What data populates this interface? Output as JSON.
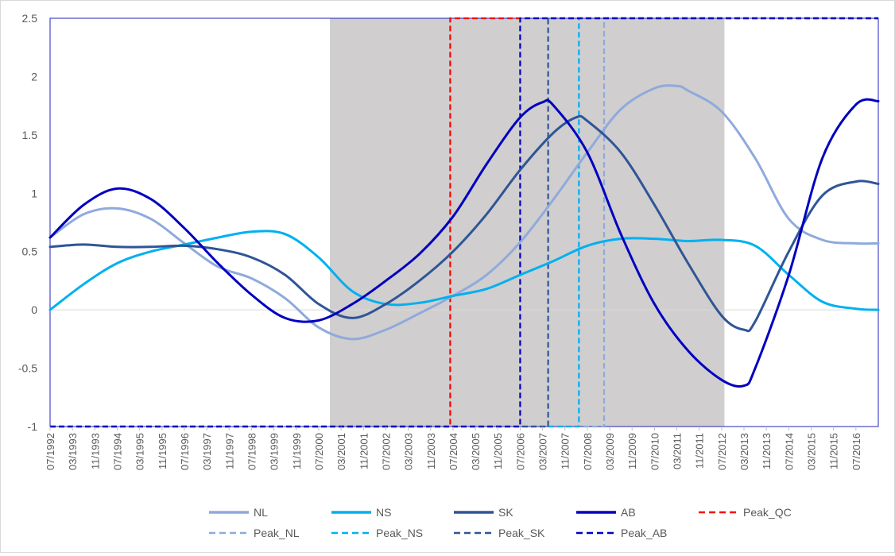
{
  "chart_data": {
    "type": "line",
    "title": "",
    "xlabel": "",
    "ylabel": "",
    "ylim": [
      -1,
      2.5
    ],
    "yticks": [
      -1,
      -0.5,
      0,
      0.5,
      1,
      1.5,
      2,
      2.5
    ],
    "ytick_labels": [
      "-1",
      "-0.5",
      "0",
      "0.5",
      "1",
      "1.5",
      "2",
      "2.5"
    ],
    "xlim": [
      "07/1992",
      "03/2017"
    ],
    "xtick_labels": [
      "07/1992",
      "03/1993",
      "11/1993",
      "07/1994",
      "03/1995",
      "11/1995",
      "07/1996",
      "03/1997",
      "11/1997",
      "07/1998",
      "03/1999",
      "11/1999",
      "07/2000",
      "03/2001",
      "11/2001",
      "07/2002",
      "03/2003",
      "11/2003",
      "07/2004",
      "03/2005",
      "11/2005",
      "07/2006",
      "03/2007",
      "11/2007",
      "07/2008",
      "03/2009",
      "11/2009",
      "07/2010",
      "03/2011",
      "11/2011",
      "07/2012",
      "03/2013",
      "11/2013",
      "07/2014",
      "03/2015",
      "11/2015",
      "07/2016"
    ],
    "shaded_region": {
      "start": "11/2000",
      "end": "08/2012",
      "color": "#d0cece"
    },
    "grid": false,
    "legend_position": "bottom",
    "series": [
      {
        "name": "NL",
        "color": "#8faadc",
        "style": "solid",
        "points": [
          [
            "07/1992",
            0.62
          ],
          [
            "07/1993",
            0.82
          ],
          [
            "07/1994",
            0.87
          ],
          [
            "07/1995",
            0.78
          ],
          [
            "07/1996",
            0.57
          ],
          [
            "07/1997",
            0.37
          ],
          [
            "07/1998",
            0.27
          ],
          [
            "07/1999",
            0.1
          ],
          [
            "07/2000",
            -0.15
          ],
          [
            "07/2001",
            -0.25
          ],
          [
            "07/2002",
            -0.17
          ],
          [
            "07/2003",
            -0.03
          ],
          [
            "07/2004",
            0.12
          ],
          [
            "07/2005",
            0.3
          ],
          [
            "07/2006",
            0.58
          ],
          [
            "07/2007",
            0.95
          ],
          [
            "07/2008",
            1.35
          ],
          [
            "07/2009",
            1.72
          ],
          [
            "07/2010",
            1.9
          ],
          [
            "03/2011",
            1.92
          ],
          [
            "07/2011",
            1.88
          ],
          [
            "07/2012",
            1.7
          ],
          [
            "07/2013",
            1.3
          ],
          [
            "07/2014",
            0.78
          ],
          [
            "07/2015",
            0.6
          ],
          [
            "07/2016",
            0.57
          ],
          [
            "03/2017",
            0.57
          ]
        ]
      },
      {
        "name": "NS",
        "color": "#00b0f0",
        "style": "solid",
        "points": [
          [
            "07/1992",
            0.0
          ],
          [
            "07/1993",
            0.22
          ],
          [
            "07/1994",
            0.4
          ],
          [
            "07/1995",
            0.5
          ],
          [
            "07/1996",
            0.56
          ],
          [
            "07/1997",
            0.62
          ],
          [
            "07/1998",
            0.67
          ],
          [
            "07/1999",
            0.65
          ],
          [
            "07/2000",
            0.45
          ],
          [
            "07/2001",
            0.16
          ],
          [
            "07/2002",
            0.05
          ],
          [
            "07/2003",
            0.06
          ],
          [
            "07/2004",
            0.12
          ],
          [
            "07/2005",
            0.18
          ],
          [
            "07/2006",
            0.3
          ],
          [
            "07/2007",
            0.42
          ],
          [
            "07/2008",
            0.55
          ],
          [
            "07/2009",
            0.61
          ],
          [
            "07/2010",
            0.61
          ],
          [
            "07/2011",
            0.59
          ],
          [
            "07/2012",
            0.6
          ],
          [
            "07/2013",
            0.55
          ],
          [
            "07/2014",
            0.3
          ],
          [
            "07/2015",
            0.07
          ],
          [
            "07/2016",
            0.01
          ],
          [
            "03/2017",
            0.0
          ]
        ]
      },
      {
        "name": "SK",
        "color": "#2f5597",
        "style": "solid",
        "points": [
          [
            "07/1992",
            0.54
          ],
          [
            "07/1993",
            0.56
          ],
          [
            "07/1994",
            0.54
          ],
          [
            "07/1995",
            0.54
          ],
          [
            "07/1996",
            0.55
          ],
          [
            "07/1997",
            0.52
          ],
          [
            "07/1998",
            0.45
          ],
          [
            "07/1999",
            0.3
          ],
          [
            "07/2000",
            0.05
          ],
          [
            "07/2001",
            -0.07
          ],
          [
            "07/2002",
            0.05
          ],
          [
            "07/2003",
            0.25
          ],
          [
            "07/2004",
            0.5
          ],
          [
            "07/2005",
            0.82
          ],
          [
            "07/2006",
            1.2
          ],
          [
            "07/2007",
            1.52
          ],
          [
            "03/2008",
            1.65
          ],
          [
            "07/2008",
            1.62
          ],
          [
            "07/2009",
            1.35
          ],
          [
            "07/2010",
            0.9
          ],
          [
            "07/2011",
            0.4
          ],
          [
            "07/2012",
            -0.05
          ],
          [
            "03/2013",
            -0.17
          ],
          [
            "07/2013",
            -0.1
          ],
          [
            "07/2014",
            0.5
          ],
          [
            "07/2015",
            0.98
          ],
          [
            "07/2016",
            1.1
          ],
          [
            "03/2017",
            1.08
          ]
        ]
      },
      {
        "name": "AB",
        "color": "#0000c0",
        "style": "solid",
        "points": [
          [
            "07/1992",
            0.62
          ],
          [
            "07/1993",
            0.9
          ],
          [
            "07/1994",
            1.04
          ],
          [
            "07/1995",
            0.95
          ],
          [
            "07/1996",
            0.7
          ],
          [
            "07/1997",
            0.4
          ],
          [
            "07/1998",
            0.13
          ],
          [
            "07/1999",
            -0.07
          ],
          [
            "07/2000",
            -0.09
          ],
          [
            "07/2001",
            0.05
          ],
          [
            "07/2002",
            0.25
          ],
          [
            "07/2003",
            0.48
          ],
          [
            "07/2004",
            0.8
          ],
          [
            "07/2005",
            1.25
          ],
          [
            "07/2006",
            1.65
          ],
          [
            "03/2007",
            1.78
          ],
          [
            "07/2007",
            1.75
          ],
          [
            "07/2008",
            1.35
          ],
          [
            "07/2009",
            0.65
          ],
          [
            "07/2010",
            0.05
          ],
          [
            "07/2011",
            -0.35
          ],
          [
            "07/2012",
            -0.6
          ],
          [
            "03/2013",
            -0.65
          ],
          [
            "07/2013",
            -0.5
          ],
          [
            "07/2014",
            0.3
          ],
          [
            "07/2015",
            1.3
          ],
          [
            "07/2016",
            1.76
          ],
          [
            "03/2017",
            1.79
          ]
        ]
      },
      {
        "name": "Peak_QC",
        "color": "#ff0000",
        "style": "dashed",
        "peak_date": "06/2004"
      },
      {
        "name": "Peak_NL",
        "color": "#8faadc",
        "style": "dashed",
        "peak_date": "01/2009"
      },
      {
        "name": "Peak_NS",
        "color": "#00b0f0",
        "style": "dashed",
        "peak_date": "04/2008"
      },
      {
        "name": "Peak_SK",
        "color": "#2f5597",
        "style": "dashed",
        "peak_date": "05/2007"
      },
      {
        "name": "Peak_AB",
        "color": "#0000c0",
        "style": "dashed",
        "peak_date": "07/2006"
      }
    ]
  }
}
